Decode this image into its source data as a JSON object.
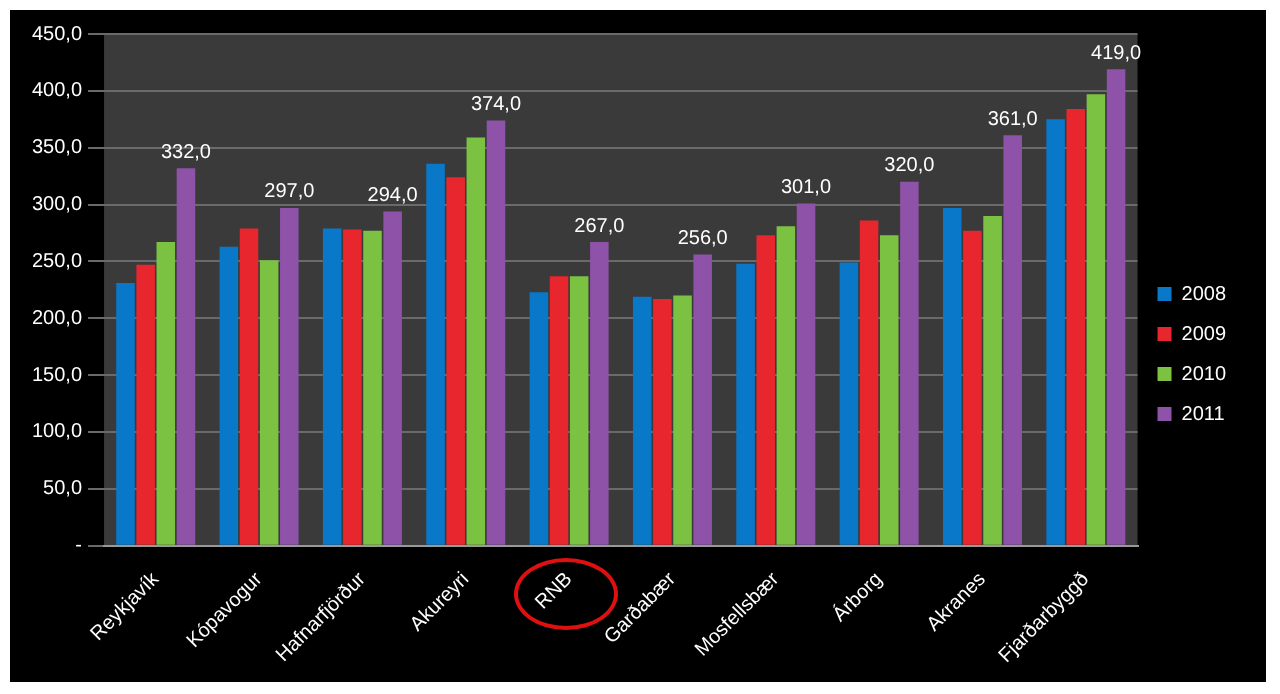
{
  "chart_data": {
    "type": "bar",
    "categories": [
      "Reykjavík",
      "Kópavogur",
      "Hafnarfjörður",
      "Akureyri",
      "RNB",
      "Garðabær",
      "Mosfellsbær",
      "Árborg",
      "Akranes",
      "Fjarðarbyggð"
    ],
    "series": [
      {
        "name": "2008",
        "color": "#0a78c8",
        "values": [
          231,
          263,
          279,
          336,
          223,
          219,
          248,
          249,
          297,
          375
        ]
      },
      {
        "name": "2009",
        "color": "#e8262d",
        "values": [
          247,
          279,
          278,
          324,
          237,
          217,
          273,
          286,
          277,
          384
        ]
      },
      {
        "name": "2010",
        "color": "#7cc242",
        "values": [
          267,
          251,
          277,
          359,
          237,
          220,
          281,
          273,
          290,
          397
        ]
      },
      {
        "name": "2011",
        "color": "#8e52a8",
        "values": [
          332,
          297,
          294,
          374,
          267,
          256,
          301,
          320,
          361,
          419
        ],
        "value_labels": [
          "332,0",
          "297,0",
          "294,0",
          "374,0",
          "267,0",
          "256,0",
          "301,0",
          "320,0",
          "361,0",
          "419,0"
        ]
      }
    ],
    "ylim": [
      0,
      450
    ],
    "yticks": [
      {
        "value": 0,
        "label": "-"
      },
      {
        "value": 50,
        "label": "50,0"
      },
      {
        "value": 100,
        "label": "100,0"
      },
      {
        "value": 150,
        "label": "150,0"
      },
      {
        "value": 200,
        "label": "200,0"
      },
      {
        "value": 250,
        "label": "250,0"
      },
      {
        "value": 300,
        "label": "300,0"
      },
      {
        "value": 350,
        "label": "350,0"
      },
      {
        "value": 400,
        "label": "400,0"
      },
      {
        "value": 450,
        "label": "450,0"
      }
    ],
    "grid": "y",
    "legend": "right"
  }
}
